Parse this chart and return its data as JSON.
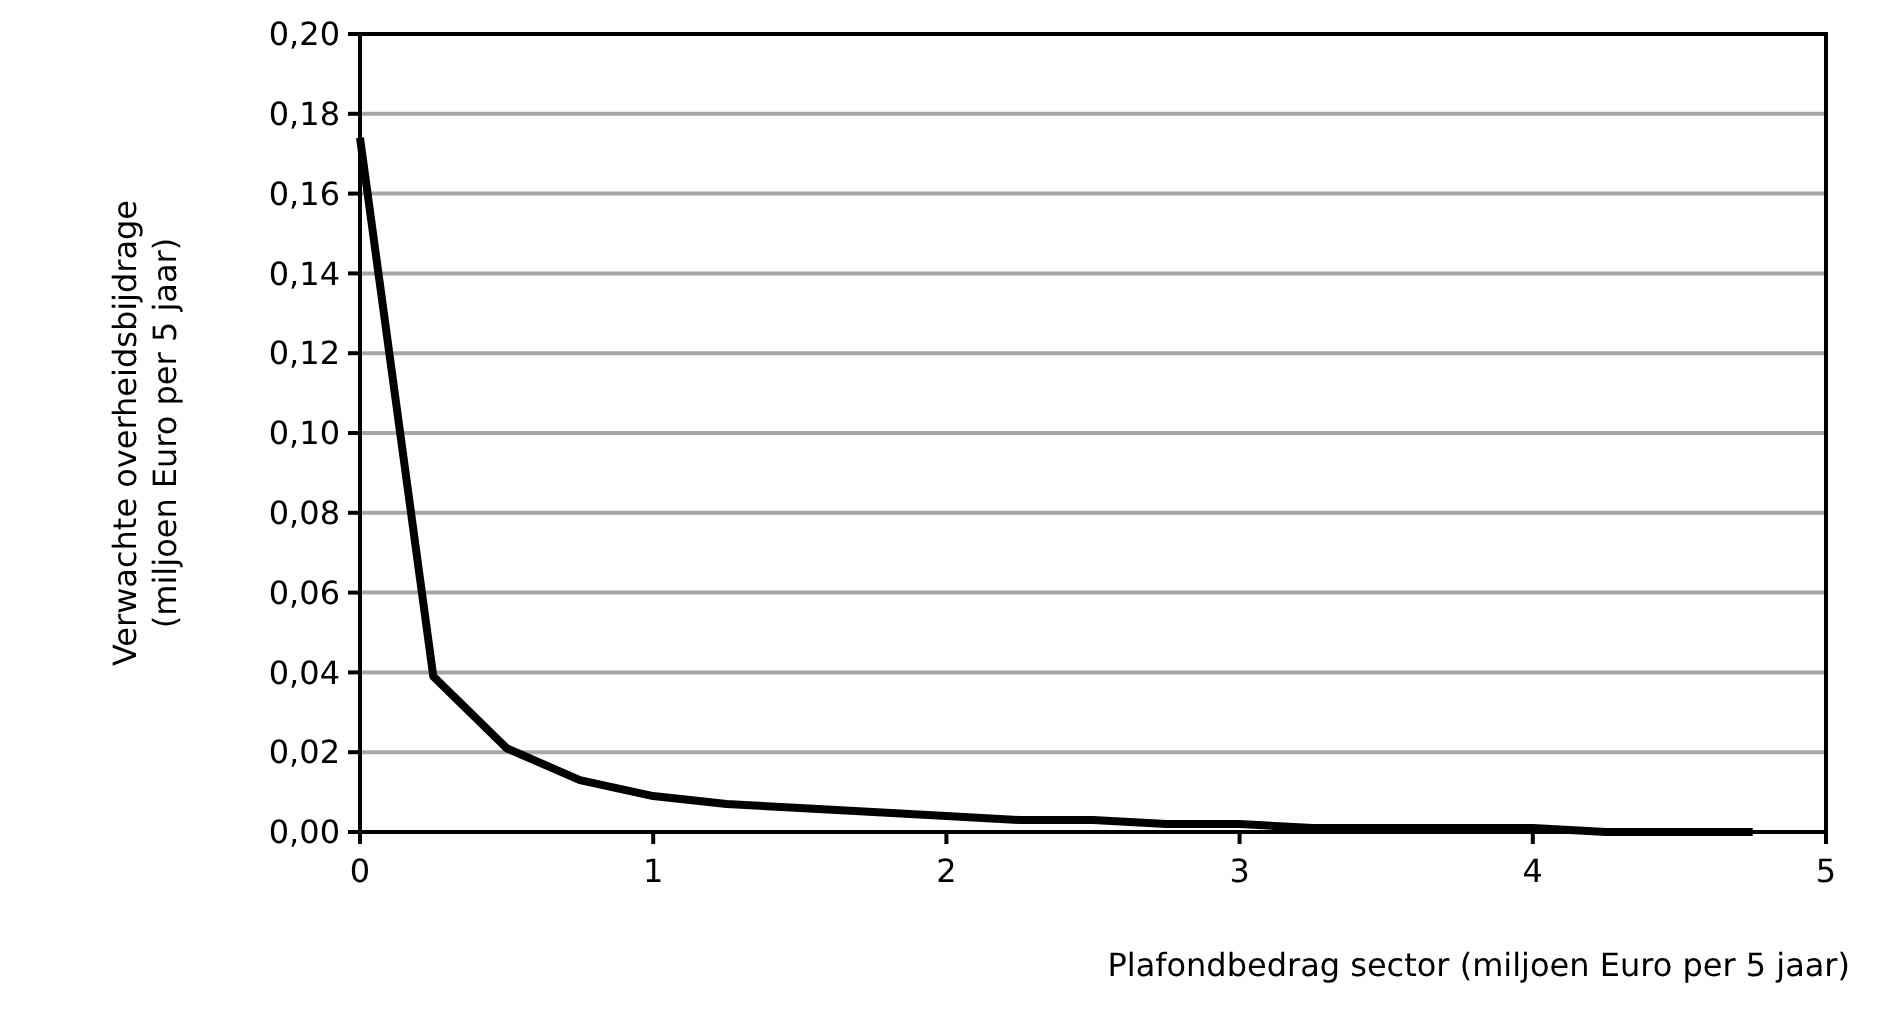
{
  "chart_data": {
    "type": "line",
    "xlabel": "Plafondbedrag sector (miljoen Euro per 5 jaar)",
    "ylabel": "Verwachte overheidsbijdrage\n(miljoen Euro per 5 jaar)",
    "x": [
      0,
      0.25,
      0.5,
      0.75,
      1,
      1.25,
      1.5,
      1.75,
      2,
      2.25,
      2.5,
      2.75,
      3,
      3.25,
      3.5,
      3.75,
      4,
      4.25,
      4.5,
      4.75
    ],
    "series": [
      {
        "color": "#000000",
        "values": [
          0.174,
          0.039,
          0.021,
          0.013,
          0.009,
          0.007,
          0.006,
          0.005,
          0.004,
          0.003,
          0.003,
          0.002,
          0.002,
          0.001,
          0.001,
          0.001,
          0.001,
          0,
          0,
          0
        ]
      }
    ],
    "xlim": [
      0,
      5
    ],
    "xticks": [
      0,
      1,
      2,
      3,
      4,
      5
    ],
    "ylim": [
      0,
      0.2
    ],
    "yticks": [
      {
        "value": 0,
        "label": "0,00"
      },
      {
        "value": 0.02,
        "label": "0,02"
      },
      {
        "value": 0.04,
        "label": "0,04"
      },
      {
        "value": 0.06,
        "label": "0,06"
      },
      {
        "value": 0.08,
        "label": "0,08"
      },
      {
        "value": 0.1,
        "label": "0,10"
      },
      {
        "value": 0.12,
        "label": "0,12"
      },
      {
        "value": 0.14,
        "label": "0,14"
      },
      {
        "value": 0.16,
        "label": "0,16"
      },
      {
        "value": 0.18,
        "label": "0,18"
      },
      {
        "value": 0.2,
        "label": "0,20"
      }
    ],
    "grid": "y",
    "marker": "none",
    "line_style": "solid"
  }
}
